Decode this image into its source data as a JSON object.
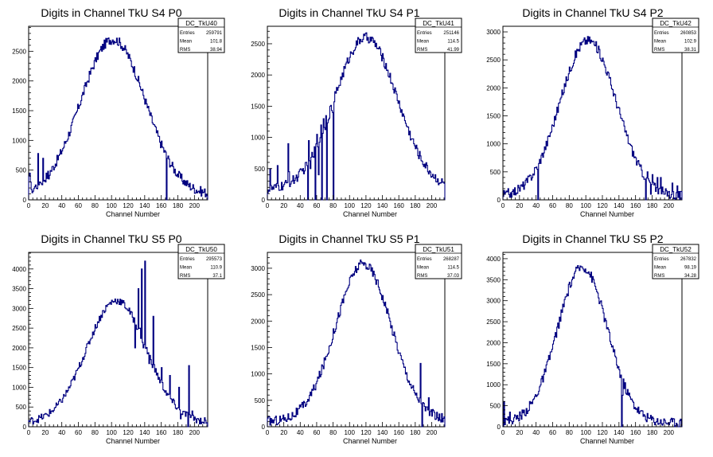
{
  "chart_data": [
    {
      "type": "histogram",
      "title": "Digits in Channel TkU S4 P0",
      "xlabel": "Channel Number",
      "xlim": [
        0,
        216
      ],
      "ylim": [
        0,
        2920
      ],
      "xticks": [
        0,
        20,
        40,
        60,
        80,
        100,
        120,
        140,
        160,
        180,
        200
      ],
      "yticks": [
        0,
        500,
        1000,
        1500,
        2000,
        2500
      ],
      "stats": {
        "name": "DC_TkU40",
        "entries_label": "Entries",
        "entries": "259791",
        "mean_label": "Mean",
        "mean": "101.8",
        "rms_label": "RMS",
        "rms": "38.94"
      },
      "profile": {
        "mean": 101.8,
        "rms": 38.94,
        "peak": 2700,
        "floor": 80
      },
      "spikes": [
        [
          0,
          400
        ],
        [
          1,
          450
        ],
        [
          2,
          300
        ],
        [
          4,
          120
        ],
        [
          8,
          250
        ],
        [
          11,
          780
        ],
        [
          13,
          300
        ],
        [
          17,
          700
        ],
        [
          21,
          450
        ],
        [
          24,
          350
        ],
        [
          166,
          0
        ],
        [
          167,
          700
        ]
      ],
      "color": "#000080",
      "tag": "a"
    },
    {
      "type": "histogram",
      "title": "Digits in Channel TkU S4 P1",
      "xlabel": "Channel Number",
      "xlim": [
        0,
        216
      ],
      "ylim": [
        0,
        2780
      ],
      "xticks": [
        0,
        20,
        40,
        60,
        80,
        100,
        120,
        140,
        160,
        180,
        200
      ],
      "yticks": [
        0,
        500,
        1000,
        1500,
        2000,
        2500
      ],
      "stats": {
        "name": "DC_TkU41",
        "entries_label": "Entries",
        "entries": "251146",
        "mean_label": "Mean",
        "mean": "114.5",
        "rms_label": "RMS",
        "rms": "41.99"
      },
      "profile": {
        "mean": 120,
        "rms": 38,
        "peak": 2600,
        "floor": 150
      },
      "spikes": [
        [
          3,
          500
        ],
        [
          12,
          550
        ],
        [
          25,
          900
        ],
        [
          26,
          450
        ],
        [
          47,
          600
        ],
        [
          49,
          0
        ],
        [
          50,
          950
        ],
        [
          52,
          500
        ],
        [
          57,
          850
        ],
        [
          58,
          0
        ],
        [
          60,
          1050
        ],
        [
          62,
          400
        ],
        [
          65,
          1200
        ],
        [
          66,
          0
        ],
        [
          68,
          1300
        ],
        [
          71,
          1350
        ],
        [
          72,
          0
        ],
        [
          76,
          1500
        ],
        [
          79,
          1400
        ],
        [
          80,
          0
        ],
        [
          84,
          1800
        ]
      ],
      "color": "#000080",
      "tag": "b"
    },
    {
      "type": "histogram",
      "title": "Digits in Channel TkU S4 P2",
      "xlabel": "Channel Number",
      "xlim": [
        0,
        216
      ],
      "ylim": [
        0,
        3100
      ],
      "xticks": [
        0,
        20,
        40,
        60,
        80,
        100,
        120,
        140,
        160,
        180,
        200
      ],
      "yticks": [
        0,
        500,
        1000,
        1500,
        2000,
        2500,
        3000
      ],
      "stats": {
        "name": "DC_TkU42",
        "entries_label": "Entries",
        "entries": "260853",
        "mean_label": "Mean",
        "mean": "102.9",
        "rms_label": "RMS",
        "rms": "38.31"
      },
      "profile": {
        "mean": 102.9,
        "rms": 34,
        "peak": 2850,
        "floor": 60
      },
      "spikes": [
        [
          2,
          100
        ],
        [
          6,
          200
        ],
        [
          11,
          150
        ],
        [
          42,
          0
        ],
        [
          43,
          650
        ],
        [
          172,
          0
        ],
        [
          174,
          500
        ],
        [
          178,
          100
        ],
        [
          180,
          450
        ],
        [
          184,
          150
        ],
        [
          186,
          400
        ],
        [
          190,
          400
        ],
        [
          194,
          100
        ],
        [
          200,
          150
        ],
        [
          204,
          300
        ],
        [
          210,
          250
        ]
      ],
      "color": "#000080",
      "tag": "c"
    },
    {
      "type": "histogram",
      "title": "Digits in Channel TkU S5 P0",
      "xlabel": "Channel Number",
      "xlim": [
        0,
        216
      ],
      "ylim": [
        0,
        4420
      ],
      "xticks": [
        0,
        20,
        40,
        60,
        80,
        100,
        120,
        140,
        160,
        180,
        200
      ],
      "yticks": [
        0,
        500,
        1000,
        1500,
        2000,
        2500,
        3000,
        3500,
        4000
      ],
      "stats": {
        "name": "DC_TkU50",
        "entries_label": "Entries",
        "entries": "295573",
        "mean_label": "Mean",
        "mean": "110.9",
        "rms_label": "RMS",
        "rms": "37.1"
      },
      "profile": {
        "mean": 106,
        "rms": 36,
        "peak": 3200,
        "floor": 100
      },
      "spikes": [
        [
          128,
          2000
        ],
        [
          132,
          3500
        ],
        [
          134,
          2500
        ],
        [
          136,
          4000
        ],
        [
          138,
          2000
        ],
        [
          140,
          4200
        ],
        [
          145,
          1600
        ],
        [
          150,
          2800
        ],
        [
          160,
          1500
        ],
        [
          170,
          1300
        ],
        [
          181,
          1000
        ],
        [
          183,
          200
        ],
        [
          192,
          0
        ],
        [
          193,
          1550
        ],
        [
          197,
          400
        ]
      ],
      "color": "#000080",
      "tag": "d"
    },
    {
      "type": "histogram",
      "title": "Digits in Channel TkU S5 P1",
      "xlabel": "Channel Number",
      "xlim": [
        0,
        216
      ],
      "ylim": [
        0,
        3300
      ],
      "xticks": [
        0,
        20,
        40,
        60,
        80,
        100,
        120,
        140,
        160,
        180,
        200
      ],
      "yticks": [
        0,
        500,
        1000,
        1500,
        2000,
        2500,
        3000
      ],
      "stats": {
        "name": "DC_TkU51",
        "entries_label": "Entries",
        "entries": "268287",
        "mean_label": "Mean",
        "mean": "114.5",
        "rms_label": "RMS",
        "rms": "37.03"
      },
      "profile": {
        "mean": 117,
        "rms": 34,
        "peak": 3080,
        "floor": 100
      },
      "spikes": [
        [
          180,
          600
        ],
        [
          186,
          1200
        ],
        [
          188,
          0
        ],
        [
          192,
          300
        ],
        [
          196,
          550
        ],
        [
          200,
          200
        ]
      ],
      "color": "#000080",
      "tag": "e"
    },
    {
      "type": "histogram",
      "title": "Digits in Channel TkU S5 P2",
      "xlabel": "Channel Number",
      "xlim": [
        0,
        216
      ],
      "ylim": [
        0,
        4150
      ],
      "xticks": [
        0,
        20,
        40,
        60,
        80,
        100,
        120,
        140,
        160,
        180,
        200
      ],
      "yticks": [
        0,
        500,
        1000,
        1500,
        2000,
        2500,
        3000,
        3500,
        4000
      ],
      "stats": {
        "name": "DC_TkU52",
        "entries_label": "Entries",
        "entries": "267832",
        "mean_label": "Mean",
        "mean": "98.19",
        "rms_label": "RMS",
        "rms": "34.28"
      },
      "profile": {
        "mean": 96,
        "rms": 30,
        "peak": 3800,
        "floor": 100
      },
      "spikes": [
        [
          1,
          600
        ],
        [
          3,
          200
        ],
        [
          8,
          350
        ],
        [
          143,
          0
        ],
        [
          144,
          750
        ]
      ],
      "color": "#000080",
      "tag": "f"
    }
  ]
}
